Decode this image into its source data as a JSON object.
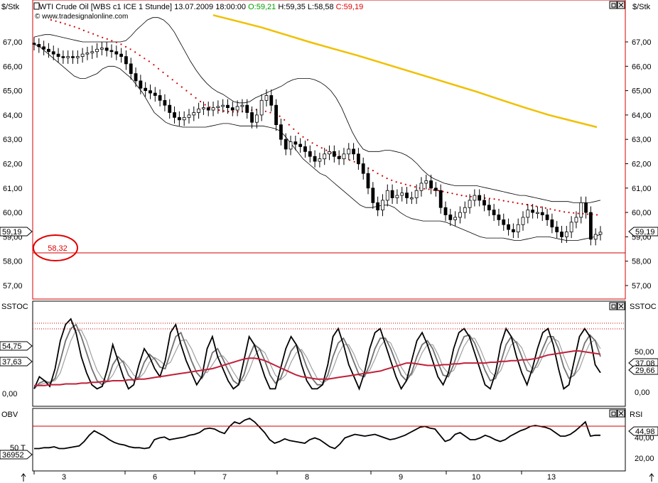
{
  "header": {
    "unit_left": "$/Stk",
    "unit_right": "$/Stk",
    "title": "WTI Crude Oil [WBS c1 ICE  1 Stunde] 13.07.2009 18:00:00",
    "open": "O:59,21",
    "high": "H:59,35",
    "low": "L:58,58",
    "close": "C:59,19",
    "copyright": "© www.tradesignalonline.com",
    "close_color": "#e00000",
    "open_color": "#00a000"
  },
  "price_panel": {
    "ticks": [
      "67,00",
      "66,00",
      "65,00",
      "64,00",
      "63,00",
      "62,00",
      "61,00",
      "60,00",
      "59,00",
      "58,00",
      "57,00"
    ],
    "last_left": "59,19",
    "last_right": "59,19",
    "support_label": "58,32",
    "support_value": 58.32
  },
  "stoch_panel": {
    "label_left": "SSTOC",
    "label_right": "SSTOC",
    "left_values": [
      "54,75",
      "37,63",
      "0,00"
    ],
    "right_ticks": [
      "50,00",
      "29,66",
      "0,00"
    ],
    "right_values": [
      "37,08",
      "29,66"
    ]
  },
  "lower_panel": {
    "label_left": "OBV",
    "label_right": "RSI",
    "left_values": [
      "50 T",
      "36952"
    ],
    "right_ticks": [
      "40,00",
      "20,00"
    ],
    "right_value": "44,98"
  },
  "x_axis": {
    "labels": [
      "3",
      "6",
      "7",
      "8",
      "9",
      "10",
      "13"
    ]
  },
  "chart_data": {
    "type": "candlestick",
    "instrument": "WTI Crude Oil [WBS c1 ICE  1 Stunde]",
    "timestamp": "13.07.2009 18:00:00",
    "ohlc_last": {
      "open": 59.21,
      "high": 59.35,
      "low": 58.58,
      "close": 59.19
    },
    "ylim": [
      56.5,
      68.1
    ],
    "x_categories": [
      "3",
      "6",
      "7",
      "8",
      "9",
      "10",
      "13"
    ],
    "close_series": [
      66.9,
      66.8,
      66.7,
      66.6,
      66.5,
      66.4,
      66.35,
      66.4,
      66.35,
      66.4,
      66.5,
      66.55,
      66.6,
      66.7,
      66.75,
      66.65,
      66.6,
      66.5,
      66.4,
      66.1,
      65.7,
      65.4,
      65.1,
      65.0,
      64.9,
      64.8,
      64.6,
      64.4,
      64.1,
      63.9,
      63.8,
      63.9,
      64.0,
      64.1,
      64.25,
      64.3,
      64.2,
      64.3,
      64.35,
      64.4,
      64.3,
      64.2,
      64.35,
      64.4,
      64.1,
      63.7,
      64.0,
      64.6,
      64.8,
      64.4,
      63.6,
      63.0,
      62.6,
      62.9,
      62.8,
      62.7,
      62.5,
      62.3,
      62.1,
      62.2,
      62.4,
      62.5,
      62.3,
      62.2,
      62.4,
      62.6,
      62.4,
      62.0,
      61.6,
      61.0,
      60.4,
      60.1,
      60.5,
      60.9,
      60.6,
      60.7,
      60.8,
      60.6,
      60.6,
      60.9,
      61.2,
      61.3,
      61.0,
      60.9,
      60.2,
      59.9,
      59.7,
      59.8,
      60.0,
      60.2,
      60.5,
      60.7,
      60.5,
      60.3,
      60.1,
      59.9,
      59.7,
      59.5,
      59.3,
      59.2,
      59.5,
      59.8,
      60.1,
      60.0,
      60.0,
      59.9,
      59.7,
      59.4,
      59.2,
      59.0,
      59.2,
      59.6,
      59.8,
      60.4,
      60.0,
      58.9,
      59.1,
      59.19
    ],
    "ma_series": [
      67.9,
      67.85,
      67.8,
      67.74,
      67.68,
      67.62,
      67.55,
      67.47,
      67.4,
      67.33,
      67.25,
      67.18,
      67.12,
      67.05,
      66.98,
      66.9,
      66.8,
      66.7,
      66.58,
      66.45,
      66.32,
      66.2,
      66.06,
      65.9,
      65.75,
      65.6,
      65.45,
      65.3,
      65.15,
      65.0,
      64.85,
      64.7,
      64.55,
      64.42,
      64.32,
      64.25,
      64.2,
      64.16,
      64.14,
      64.13,
      64.13,
      64.15,
      64.17,
      64.2,
      64.22,
      64.2,
      64.15,
      64.1,
      64.05,
      63.95,
      63.8,
      63.6,
      63.42,
      63.25,
      63.1,
      62.98,
      62.85,
      62.75,
      62.65,
      62.55,
      62.45,
      62.38,
      62.3,
      62.22,
      62.15,
      62.08,
      62.0,
      61.92,
      61.82,
      61.72,
      61.6,
      61.5,
      61.4,
      61.32,
      61.25,
      61.2,
      61.15,
      61.1,
      61.05,
      61.0,
      60.97,
      60.95,
      60.92,
      60.9,
      60.86,
      60.82,
      60.78,
      60.74,
      60.7,
      60.67,
      60.65,
      60.63,
      60.61,
      60.59,
      60.57,
      60.55,
      60.52,
      60.48,
      60.45,
      60.42,
      60.38,
      60.35,
      60.32,
      60.28,
      60.25,
      60.22,
      60.18,
      60.14,
      60.1,
      60.06,
      60.02,
      60.0,
      59.98,
      59.96,
      59.95,
      59.93,
      59.92,
      59.9
    ],
    "upper_band": [
      67.2,
      67.25,
      67.3,
      67.3,
      67.25,
      67.2,
      67.15,
      67.1,
      67.05,
      67.0,
      67.0,
      67.0,
      67.0,
      67.0,
      67.0,
      67.0,
      67.0,
      67.05,
      67.25,
      67.5,
      67.7,
      67.9,
      68.0,
      68.0,
      67.9,
      67.7,
      67.4,
      67.0,
      66.6,
      66.2,
      65.85,
      65.55,
      65.3,
      65.1,
      64.95,
      64.85,
      64.7,
      64.55,
      64.5,
      64.5,
      64.55,
      64.7,
      64.8,
      64.9,
      65.0,
      65.1,
      65.2,
      65.35,
      65.45,
      65.5,
      65.5,
      65.5,
      65.45,
      65.35,
      65.2,
      65.0,
      64.7,
      64.3,
      63.8,
      63.3,
      62.9,
      62.6,
      62.5,
      62.5,
      62.5,
      62.55,
      62.55,
      62.5,
      62.45,
      62.35,
      62.2,
      62.0,
      61.75,
      61.55,
      61.4,
      61.3,
      61.2,
      61.15,
      61.1,
      61.1,
      61.1,
      61.1,
      61.1,
      61.05,
      61.0,
      60.95,
      60.9,
      60.85,
      60.8,
      60.75,
      60.7,
      60.7,
      60.65,
      60.6,
      60.55,
      60.5,
      60.45,
      60.45,
      60.45,
      60.45,
      60.4,
      60.4,
      60.4,
      60.4,
      60.45,
      60.5
    ],
    "lower_band": [
      66.9,
      66.8,
      66.6,
      66.4,
      66.2,
      66.0,
      65.8,
      65.6,
      65.5,
      65.5,
      65.6,
      65.7,
      65.9,
      66.0,
      66.0,
      65.9,
      65.7,
      65.5,
      65.2,
      64.9,
      64.5,
      64.1,
      63.9,
      63.7,
      63.6,
      63.55,
      63.5,
      63.5,
      63.5,
      63.5,
      63.5,
      63.55,
      63.6,
      63.65,
      63.65,
      63.6,
      63.55,
      63.55,
      63.55,
      63.55,
      63.55,
      63.5,
      63.45,
      63.35,
      63.1,
      62.8,
      62.5,
      62.2,
      62.0,
      61.8,
      61.6,
      61.5,
      61.3,
      61.1,
      60.9,
      60.7,
      60.5,
      60.3,
      60.2,
      60.2,
      60.25,
      60.3,
      60.3,
      60.2,
      60.0,
      59.85,
      59.75,
      59.7,
      59.65,
      59.65,
      59.65,
      59.65,
      59.6,
      59.5,
      59.4,
      59.3,
      59.2,
      59.1,
      59.0,
      58.95,
      58.95,
      58.95,
      58.95,
      58.9,
      58.85,
      58.85,
      58.9,
      58.95,
      59.0,
      59.0,
      59.0,
      58.95,
      58.9,
      58.85,
      58.85,
      58.85,
      58.9,
      58.95,
      59.0,
      59.1
    ],
    "sma200_series": [
      68.1,
      67.85,
      67.6,
      67.3,
      67.0,
      66.72,
      66.45,
      66.15,
      65.85,
      65.55,
      65.25,
      64.95,
      64.62,
      64.3,
      64.0,
      63.75,
      63.5
    ],
    "stoch_fast": [
      5,
      20,
      15,
      8,
      30,
      65,
      85,
      92,
      75,
      45,
      25,
      10,
      5,
      8,
      30,
      60,
      40,
      20,
      5,
      10,
      35,
      55,
      45,
      30,
      20,
      40,
      75,
      85,
      60,
      40,
      25,
      10,
      20,
      55,
      70,
      45,
      30,
      15,
      5,
      10,
      40,
      70,
      60,
      40,
      20,
      5,
      5,
      30,
      55,
      70,
      60,
      35,
      15,
      5,
      5,
      10,
      35,
      70,
      80,
      60,
      35,
      20,
      5,
      25,
      55,
      75,
      80,
      60,
      40,
      20,
      5,
      15,
      40,
      65,
      75,
      60,
      40,
      20,
      10,
      25,
      55,
      75,
      80,
      70,
      50,
      30,
      10,
      5,
      25,
      60,
      80,
      70,
      45,
      25,
      10,
      30,
      55,
      75,
      80,
      60,
      30,
      5,
      10,
      40,
      70,
      80,
      70,
      35,
      25
    ],
    "stoch_slow_a": [
      5,
      12,
      15,
      12,
      18,
      40,
      65,
      80,
      85,
      70,
      50,
      30,
      15,
      10,
      15,
      35,
      45,
      38,
      22,
      15,
      20,
      38,
      48,
      42,
      32,
      30,
      50,
      70,
      75,
      58,
      40,
      25,
      18,
      30,
      50,
      55,
      42,
      28,
      15,
      10,
      22,
      45,
      60,
      55,
      40,
      22,
      12,
      18,
      35,
      52,
      60,
      50,
      32,
      18,
      10,
      10,
      22,
      45,
      62,
      68,
      55,
      38,
      22,
      20,
      35,
      55,
      68,
      68,
      55,
      38,
      22,
      15,
      25,
      45,
      60,
      65,
      55,
      38,
      22,
      20,
      35,
      55,
      70,
      72,
      62,
      45,
      28,
      15,
      18,
      38,
      60,
      70,
      62,
      45,
      28,
      25,
      38,
      55,
      70,
      70,
      55,
      32,
      18,
      22,
      42,
      62,
      72,
      65,
      45
    ],
    "stoch_slow_b": [
      8,
      10,
      12,
      14,
      15,
      25,
      45,
      65,
      78,
      78,
      65,
      45,
      28,
      18,
      14,
      22,
      35,
      40,
      32,
      22,
      18,
      25,
      38,
      44,
      40,
      34,
      38,
      52,
      65,
      66,
      55,
      40,
      28,
      25,
      35,
      45,
      46,
      38,
      26,
      16,
      15,
      28,
      45,
      55,
      50,
      36,
      22,
      16,
      22,
      38,
      50,
      54,
      44,
      30,
      18,
      12,
      16,
      30,
      48,
      60,
      60,
      48,
      32,
      24,
      28,
      42,
      58,
      66,
      62,
      48,
      32,
      22,
      22,
      35,
      50,
      60,
      60,
      48,
      32,
      24,
      28,
      42,
      58,
      68,
      68,
      56,
      40,
      26,
      20,
      28,
      45,
      60,
      64,
      56,
      40,
      30,
      32,
      45,
      60,
      68,
      64,
      46,
      30,
      22,
      30,
      48,
      62,
      66,
      55
    ],
    "stoch_ma_red": [
      2,
      2,
      2,
      3,
      3,
      3,
      4,
      4,
      4,
      5,
      5,
      6,
      6,
      7,
      7,
      8,
      8,
      8,
      9,
      9,
      10,
      10,
      11,
      12,
      13,
      14,
      15,
      16,
      17,
      18,
      19,
      20,
      21,
      22,
      23,
      25,
      27,
      29,
      31,
      33,
      35,
      36,
      36,
      35,
      33,
      30,
      27,
      24,
      21,
      18,
      15,
      13,
      12,
      11,
      10,
      10,
      10,
      11,
      12,
      13,
      14,
      15,
      16,
      17,
      18,
      19,
      20,
      22,
      24,
      26,
      28,
      30,
      30,
      29,
      28,
      27,
      27,
      27,
      28,
      28,
      29,
      29,
      30,
      30,
      30,
      30,
      30,
      31,
      31,
      32,
      32,
      33,
      33,
      34,
      34,
      35,
      36,
      38,
      40,
      41,
      42,
      43,
      44,
      45,
      45,
      44,
      43,
      42,
      41
    ],
    "rsi_series": [
      30,
      30,
      31,
      31,
      32,
      30,
      30,
      31,
      32,
      33,
      38,
      45,
      50,
      47,
      44,
      40,
      37,
      35,
      34,
      32,
      31,
      31,
      30,
      31,
      40,
      42,
      43,
      40,
      41,
      42,
      43,
      45,
      46,
      48,
      52,
      53,
      52,
      49,
      47,
      55,
      60,
      58,
      62,
      64,
      60,
      54,
      48,
      40,
      36,
      38,
      41,
      39,
      38,
      37,
      36,
      40,
      42,
      40,
      36,
      32,
      30,
      35,
      42,
      44,
      46,
      45,
      44,
      45,
      46,
      44,
      42,
      40,
      41,
      43,
      45,
      48,
      51,
      54,
      55,
      53,
      52,
      45,
      38,
      40,
      46,
      48,
      44,
      40,
      40,
      42,
      45,
      43,
      40,
      38,
      40,
      44,
      47,
      50,
      52,
      55,
      56,
      55,
      54,
      52,
      48,
      44,
      44,
      46,
      50,
      55,
      60,
      44,
      45,
      45
    ]
  }
}
